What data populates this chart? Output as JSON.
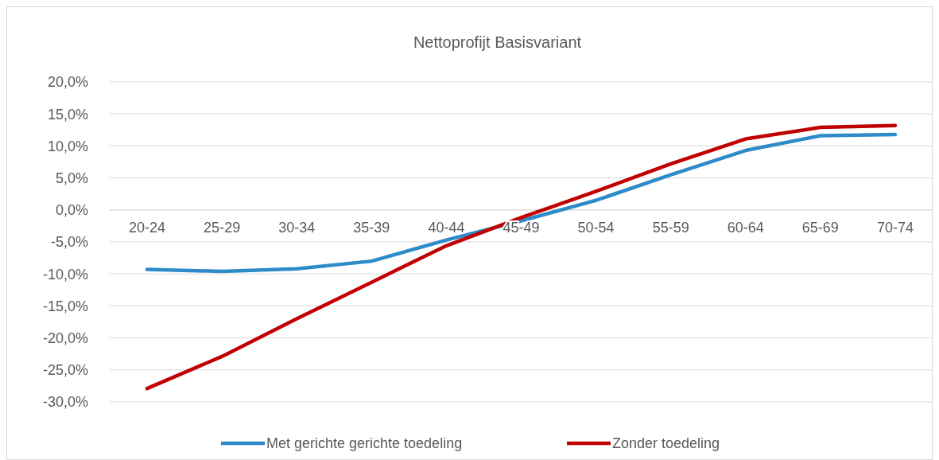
{
  "chart_data": {
    "type": "line",
    "title": "Nettoprofijt Basisvariant",
    "categories": [
      "20-24",
      "25-29",
      "30-34",
      "35-39",
      "40-44",
      "45-49",
      "50-54",
      "55-59",
      "60-64",
      "65-69",
      "70-74"
    ],
    "series": [
      {
        "name": "Met gerichte gerichte toedeling",
        "color": "#2e8bc9",
        "values": [
          -9.3,
          -9.6,
          -9.2,
          -8.0,
          -4.7,
          -1.7,
          1.5,
          5.5,
          9.3,
          11.6,
          11.8
        ]
      },
      {
        "name": "Zonder toedeling",
        "color": "#c00000",
        "values": [
          -27.9,
          -22.9,
          -17.0,
          -11.3,
          -5.6,
          -1.2,
          2.9,
          7.2,
          11.1,
          12.9,
          13.2
        ]
      }
    ],
    "ylim": [
      -30,
      20
    ],
    "yticks": [
      {
        "value": -30,
        "label": "-30,0%"
      },
      {
        "value": -25,
        "label": "-25,0%"
      },
      {
        "value": -20,
        "label": "-20,0%"
      },
      {
        "value": -15,
        "label": "-15,0%"
      },
      {
        "value": -10,
        "label": "-10,0%"
      },
      {
        "value": -5,
        "label": "-5,0%"
      },
      {
        "value": 0,
        "label": "0,0%"
      },
      {
        "value": 5,
        "label": "5,0%"
      },
      {
        "value": 10,
        "label": "10,0%"
      },
      {
        "value": 15,
        "label": "15,0%"
      },
      {
        "value": 20,
        "label": "20,0%"
      }
    ],
    "grid": "y",
    "legend": "bottom",
    "marker": "none",
    "line_style": "solid"
  }
}
